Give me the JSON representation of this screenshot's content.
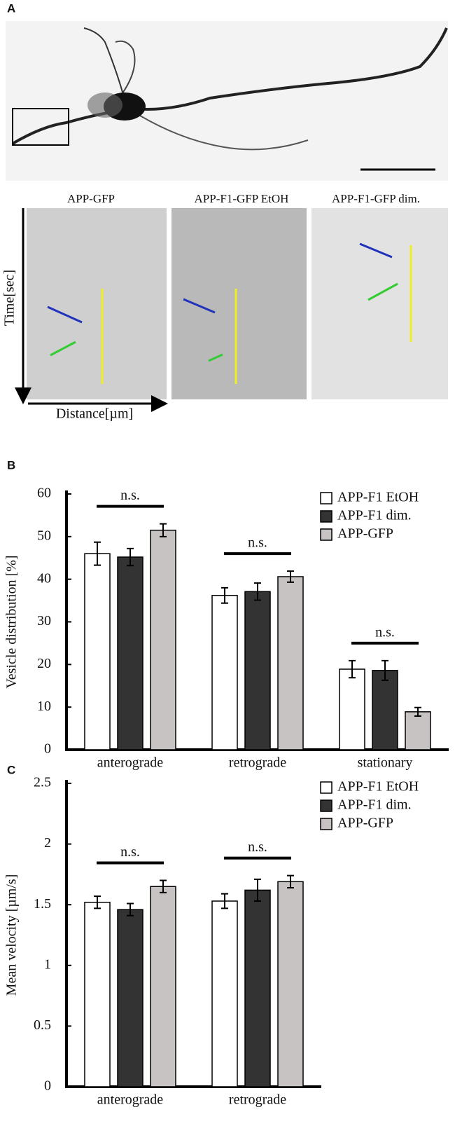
{
  "panel_labels": [
    "A",
    "B",
    "C"
  ],
  "kymographs": {
    "titles": [
      "APP-GFP",
      "APP-F1-GFP EtOH",
      "APP-F1-GFP dim."
    ],
    "y_label": "Time[sec]",
    "x_label": "Distance[µm]"
  },
  "chart_data": [
    {
      "type": "bar",
      "ylabel": "Vesicle distribution [%]",
      "categories": [
        "anterograde",
        "retrograde",
        "stationary"
      ],
      "series": [
        {
          "name": "APP-F1 EtOH",
          "color": "#ffffff",
          "values": [
            46.0,
            36.2,
            18.9
          ],
          "errors": [
            2.7,
            1.8,
            2.0
          ]
        },
        {
          "name": "APP-F1 dim.",
          "color": "#333333",
          "values": [
            45.2,
            37.1,
            18.6
          ],
          "errors": [
            2.0,
            2.0,
            2.3
          ]
        },
        {
          "name": "APP-GFP",
          "color": "#c8c3c3",
          "values": [
            51.5,
            40.6,
            8.9
          ],
          "errors": [
            1.5,
            1.3,
            1.0
          ]
        }
      ],
      "annotations": [
        "n.s.",
        "n.s.",
        "n.s."
      ],
      "ylim": [
        0,
        60
      ],
      "yticks": [
        0,
        10,
        20,
        30,
        40,
        50,
        60
      ],
      "legend": "top-right"
    },
    {
      "type": "bar",
      "ylabel": "Mean velocity [µm/s]",
      "categories": [
        "anterograde",
        "retrograde"
      ],
      "series": [
        {
          "name": "APP-F1 EtOH",
          "color": "#ffffff",
          "values": [
            1.52,
            1.53
          ],
          "errors": [
            0.05,
            0.06
          ]
        },
        {
          "name": "APP-F1 dim.",
          "color": "#333333",
          "values": [
            1.46,
            1.62
          ],
          "errors": [
            0.05,
            0.09
          ]
        },
        {
          "name": "APP-GFP",
          "color": "#c8c3c3",
          "values": [
            1.65,
            1.69
          ],
          "errors": [
            0.05,
            0.05
          ]
        }
      ],
      "annotations": [
        "n.s.",
        "n.s."
      ],
      "ylim": [
        0,
        2.5
      ],
      "yticks": [
        0,
        0.5,
        1,
        1.5,
        2,
        2.5
      ],
      "legend": "top-right"
    }
  ]
}
